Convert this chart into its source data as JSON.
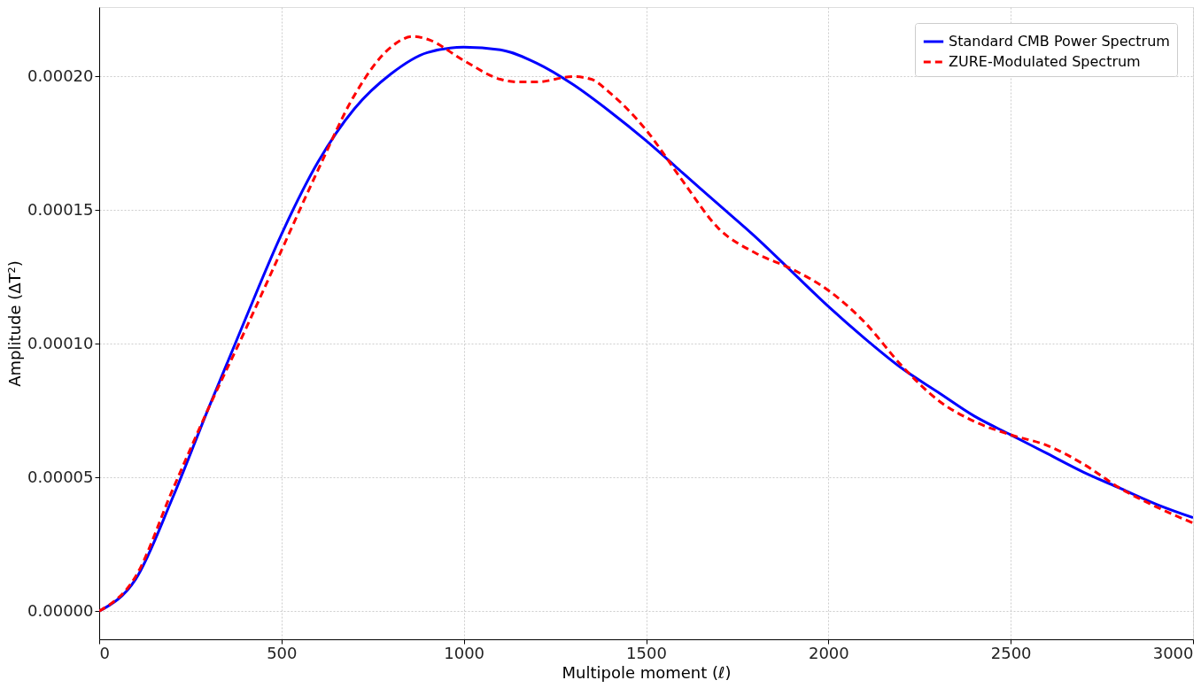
{
  "chart_data": {
    "type": "line",
    "xlabel": "Multipole moment (ℓ)",
    "ylabel": "Amplitude (ΔT²)",
    "xlim": [
      0,
      3000
    ],
    "ylim": [
      -1.05e-05,
      0.000226
    ],
    "xticks": [
      0,
      500,
      {
        "value": 1000,
        "label": "1000"
      },
      {
        "value": 1500,
        "label": "1500"
      },
      {
        "value": 2000,
        "label": "2000"
      },
      {
        "value": 2500,
        "label": "2500"
      },
      {
        "value": 3000,
        "label": "3000"
      }
    ],
    "yticks": [
      {
        "value": 0,
        "label": "0.00000"
      },
      {
        "value": 5e-05,
        "label": "0.00005"
      },
      {
        "value": 0.0001,
        "label": "0.00010"
      },
      {
        "value": 0.00015,
        "label": "0.00015"
      },
      {
        "value": 0.0002,
        "label": "0.00020"
      }
    ],
    "grid": true,
    "legend": "top right",
    "series": [
      {
        "name": "Standard CMB Power Spectrum",
        "color": "#0000ff",
        "line_style": "solid",
        "x": [
          0,
          100,
          200,
          300,
          400,
          500,
          600,
          700,
          800,
          900,
          1000,
          1100,
          1200,
          1300,
          1400,
          1500,
          1600,
          1700,
          1800,
          1900,
          2000,
          2100,
          2200,
          2300,
          2400,
          2500,
          2600,
          2700,
          2800,
          2900,
          3000
        ],
        "values": [
          0,
          1.2e-05,
          4.2e-05,
          7.6e-05,
          0.000109,
          0.000141,
          0.000168,
          0.000188,
          0.000201,
          0.000209,
          0.000211,
          0.00021,
          0.000205,
          0.000197,
          0.000187,
          0.000176,
          0.000164,
          0.000152,
          0.00014,
          0.000127,
          0.000114,
          0.000102,
          9.1e-05,
          8.2e-05,
          7.3e-05,
          6.6e-05,
          5.9e-05,
          5.2e-05,
          4.6e-05,
          4e-05,
          3.5e-05
        ]
      },
      {
        "name": "ZURE-Modulated Spectrum",
        "color": "#ff0000",
        "line_style": "dashed",
        "x": [
          0,
          100,
          200,
          300,
          400,
          500,
          600,
          700,
          800,
          860,
          900,
          1000,
          1100,
          1150,
          1200,
          1300,
          1350,
          1400,
          1500,
          1600,
          1700,
          1800,
          1900,
          2000,
          2100,
          2200,
          2300,
          2400,
          2500,
          2600,
          2700,
          2800,
          2900,
          3000
        ],
        "values": [
          0,
          1.3e-05,
          4.5e-05,
          7.6e-05,
          0.000105,
          0.000135,
          0.000165,
          0.000193,
          0.000211,
          0.000215,
          0.000214,
          0.000206,
          0.000199,
          0.000198,
          0.000198,
          0.0002,
          0.000199,
          0.000194,
          0.00018,
          0.000161,
          0.000143,
          0.000134,
          0.000128,
          0.00012,
          0.000108,
          9.2e-05,
          7.9e-05,
          7.1e-05,
          6.6e-05,
          6.2e-05,
          5.5e-05,
          4.6e-05,
          3.9e-05,
          3.3e-05
        ]
      }
    ]
  }
}
